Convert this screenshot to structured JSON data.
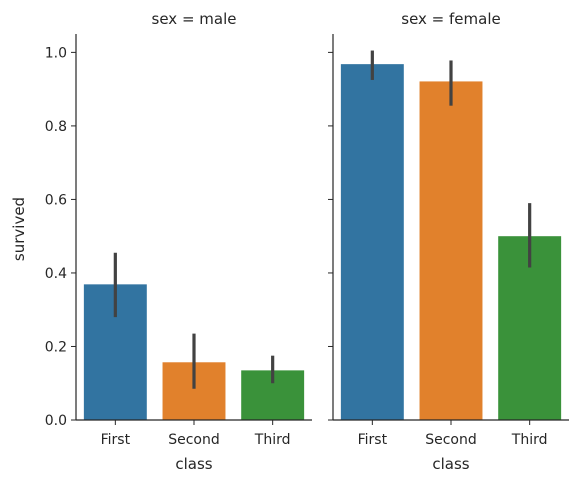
{
  "chart_data": {
    "type": "bar",
    "xlabel": "class",
    "ylabel": "survived",
    "ylim": [
      0,
      1.05
    ],
    "yticks": [
      "0.0",
      "0.2",
      "0.4",
      "0.6",
      "0.8",
      "1.0"
    ],
    "categories": [
      "First",
      "Second",
      "Third"
    ],
    "colors": [
      "#3274a1",
      "#e1812c",
      "#3a923a"
    ],
    "errorbar_color": "#424242",
    "grid": false,
    "facets": [
      {
        "title": "sex = male",
        "values": [
          0.369,
          0.157,
          0.135
        ],
        "ci": [
          [
            0.28,
            0.455
          ],
          [
            0.085,
            0.235
          ],
          [
            0.1,
            0.175
          ]
        ]
      },
      {
        "title": "sex = female",
        "values": [
          0.968,
          0.921,
          0.5
        ],
        "ci": [
          [
            0.925,
            1.005
          ],
          [
            0.855,
            0.978
          ],
          [
            0.415,
            0.59
          ]
        ]
      }
    ]
  }
}
